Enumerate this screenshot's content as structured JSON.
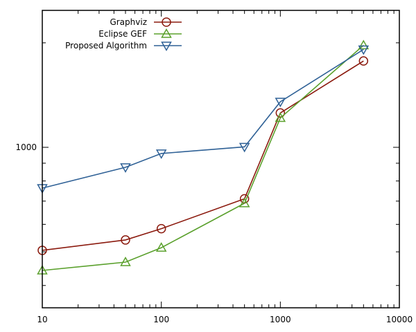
{
  "chart_data": {
    "type": "line",
    "x_scale": "log",
    "y_scale": "log",
    "xlim": [
      10,
      10000
    ],
    "ylim": [
      345,
      2480
    ],
    "x_ticks": [
      {
        "value": 10,
        "label": "10"
      },
      {
        "value": 100,
        "label": "100"
      },
      {
        "value": 1000,
        "label": "1000"
      },
      {
        "value": 10000,
        "label": "10000"
      }
    ],
    "y_ticks": [
      {
        "value": 1000,
        "label": "1000"
      }
    ],
    "grid": false,
    "legend_position": "top-left",
    "series": [
      {
        "name": "Graphviz",
        "color": "#8b1a0e",
        "marker": "circle",
        "points": [
          {
            "x": 10,
            "y": 505
          },
          {
            "x": 50,
            "y": 541
          },
          {
            "x": 100,
            "y": 583
          },
          {
            "x": 500,
            "y": 711
          },
          {
            "x": 1000,
            "y": 1256
          },
          {
            "x": 5000,
            "y": 1773
          }
        ]
      },
      {
        "name": "Eclipse GEF",
        "color": "#5aa02c",
        "marker": "triangle-up",
        "points": [
          {
            "x": 10,
            "y": 442
          },
          {
            "x": 50,
            "y": 467
          },
          {
            "x": 100,
            "y": 514
          },
          {
            "x": 500,
            "y": 690
          },
          {
            "x": 1000,
            "y": 1215
          },
          {
            "x": 5000,
            "y": 1967
          }
        ]
      },
      {
        "name": "Proposed Algorithm",
        "color": "#2f6196",
        "marker": "triangle-down",
        "points": [
          {
            "x": 10,
            "y": 763
          },
          {
            "x": 50,
            "y": 876
          },
          {
            "x": 100,
            "y": 960
          },
          {
            "x": 500,
            "y": 1003
          },
          {
            "x": 1000,
            "y": 1353
          },
          {
            "x": 5000,
            "y": 1914
          }
        ]
      }
    ]
  }
}
